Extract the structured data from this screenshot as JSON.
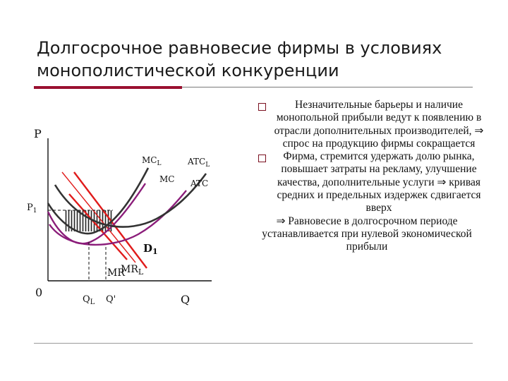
{
  "title": "Долгосрочное равновесие фирмы в условиях монополистической конкуренции",
  "colors": {
    "accent_rule": "#9a1030",
    "demand": "#e01b1b",
    "short_run_cost": "#8b1d7a",
    "long_run_cost": "#333333",
    "hatch": "#222222"
  },
  "graph": {
    "y_axis_label": "P",
    "origin_label": "0",
    "x_axis_label": "Q",
    "price_label": "P",
    "price_subscript": "1",
    "curves": {
      "mcl": "MC",
      "mcl_sub": "L",
      "atcl": "ATC",
      "atcl_sub": "L",
      "mc": "MC",
      "atc": "ATC",
      "d1": "D",
      "d1_sub": "1",
      "mr": "MR",
      "mrl": "MR",
      "mrl_sub": "L"
    },
    "x_ticks": {
      "ql": "Q",
      "ql_sub": "L",
      "qprime": "Q'"
    }
  },
  "notes": {
    "bullet_icon": "square-bullet-icon",
    "implies_icon": "double-arrow-icon",
    "items": [
      "Незначительные барьеры и наличие монопольной прибыли ведут к появлению в отрасли дополнительных производителей, ⇒ спрос на продукцию фирмы сокращается",
      "Фирма, стремится удержать долю рынка, повышает затраты на рекламу, улучшение качества, дополнительные услуги ⇒ кривая средних и предельных издержек сдвигается вверх"
    ],
    "conclusion": "⇒ Равновесие в долгосрочном периоде устанавливается при нулевой экономической прибыли"
  }
}
